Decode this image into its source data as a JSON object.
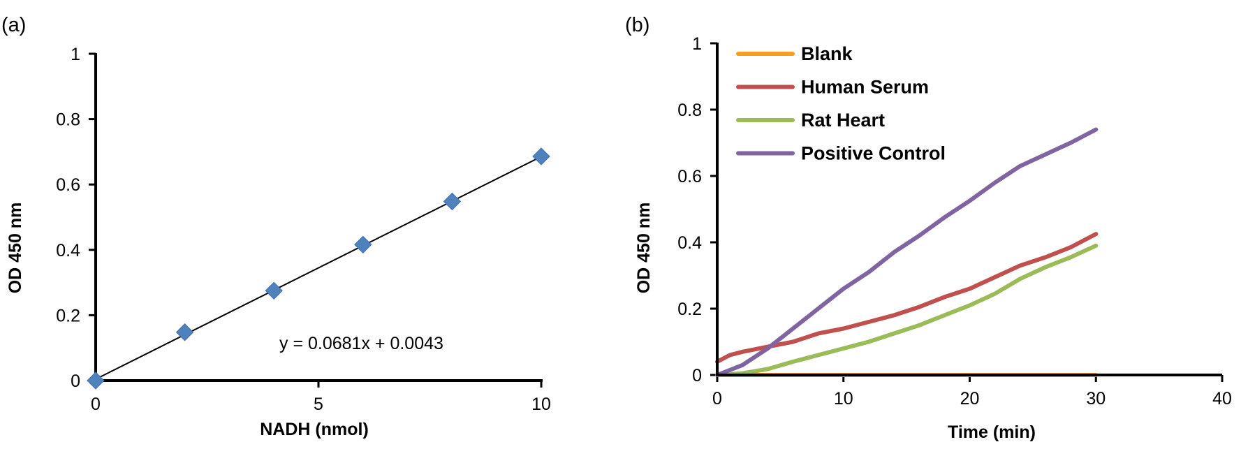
{
  "chart_data": [
    {
      "panel_label": "(a)",
      "type": "scatter",
      "title": "",
      "xlabel": "NADH  (nmol)",
      "ylabel": "OD 450 nm",
      "xlim": [
        0,
        10
      ],
      "ylim": [
        0,
        1
      ],
      "x_ticks": [
        0,
        5,
        10
      ],
      "x_tick_labels": [
        "0",
        "5",
        "10"
      ],
      "y_ticks": [
        0,
        0.2,
        0.4,
        0.6,
        0.8,
        1
      ],
      "y_tick_labels": [
        "0",
        "0.2",
        "0.4",
        "0.6",
        "0.8",
        "1"
      ],
      "grid": false,
      "marker": "diamond",
      "marker_color": "#4f81bd",
      "points": [
        {
          "x": 0,
          "y": 0
        },
        {
          "x": 2,
          "y": 0.148
        },
        {
          "x": 4,
          "y": 0.275
        },
        {
          "x": 6,
          "y": 0.416
        },
        {
          "x": 8,
          "y": 0.548
        },
        {
          "x": 10,
          "y": 0.686
        }
      ],
      "trendline": {
        "slope": 0.0681,
        "intercept": 0.0043,
        "color": "#000000"
      },
      "equation_label": "y = 0.0681x + 0.0043"
    },
    {
      "panel_label": "(b)",
      "type": "line",
      "title": "",
      "xlabel": "Time (min)",
      "ylabel": "OD 450 nm",
      "xlim": [
        0,
        40
      ],
      "ylim": [
        0,
        1
      ],
      "x_ticks": [
        0,
        10,
        20,
        30,
        40
      ],
      "x_tick_labels": [
        "0",
        "10",
        "20",
        "30",
        "40"
      ],
      "y_ticks": [
        0,
        0.2,
        0.4,
        0.6,
        0.8,
        1
      ],
      "y_tick_labels": [
        "0",
        "0.2",
        "0.4",
        "0.6",
        "0.8",
        "1"
      ],
      "grid": false,
      "legend_position": "top-left",
      "series": [
        {
          "name": "Blank",
          "color": "#f79e1b",
          "points": [
            [
              0,
              0
            ],
            [
              30,
              0
            ]
          ]
        },
        {
          "name": "Human Serum",
          "color": "#c0504d",
          "points": [
            [
              0,
              0.04
            ],
            [
              1,
              0.06
            ],
            [
              2,
              0.07
            ],
            [
              4,
              0.085
            ],
            [
              6,
              0.1
            ],
            [
              8,
              0.125
            ],
            [
              10,
              0.14
            ],
            [
              12,
              0.16
            ],
            [
              14,
              0.18
            ],
            [
              16,
              0.205
            ],
            [
              18,
              0.235
            ],
            [
              20,
              0.26
            ],
            [
              22,
              0.295
            ],
            [
              24,
              0.33
            ],
            [
              26,
              0.355
            ],
            [
              28,
              0.385
            ],
            [
              30,
              0.425
            ]
          ]
        },
        {
          "name": "Rat Heart",
          "color": "#9bbb59",
          "points": [
            [
              0,
              0
            ],
            [
              2,
              0.005
            ],
            [
              4,
              0.018
            ],
            [
              6,
              0.04
            ],
            [
              8,
              0.06
            ],
            [
              10,
              0.08
            ],
            [
              12,
              0.1
            ],
            [
              14,
              0.125
            ],
            [
              16,
              0.15
            ],
            [
              18,
              0.18
            ],
            [
              20,
              0.21
            ],
            [
              22,
              0.245
            ],
            [
              24,
              0.29
            ],
            [
              26,
              0.325
            ],
            [
              28,
              0.355
            ],
            [
              30,
              0.39
            ]
          ]
        },
        {
          "name": "Positive Control",
          "color": "#8064a2",
          "points": [
            [
              0,
              0
            ],
            [
              2,
              0.03
            ],
            [
              4,
              0.08
            ],
            [
              6,
              0.14
            ],
            [
              8,
              0.2
            ],
            [
              10,
              0.26
            ],
            [
              12,
              0.31
            ],
            [
              14,
              0.37
            ],
            [
              16,
              0.42
            ],
            [
              18,
              0.475
            ],
            [
              20,
              0.525
            ],
            [
              22,
              0.58
            ],
            [
              24,
              0.63
            ],
            [
              26,
              0.665
            ],
            [
              28,
              0.7
            ],
            [
              30,
              0.74
            ]
          ]
        }
      ]
    }
  ]
}
